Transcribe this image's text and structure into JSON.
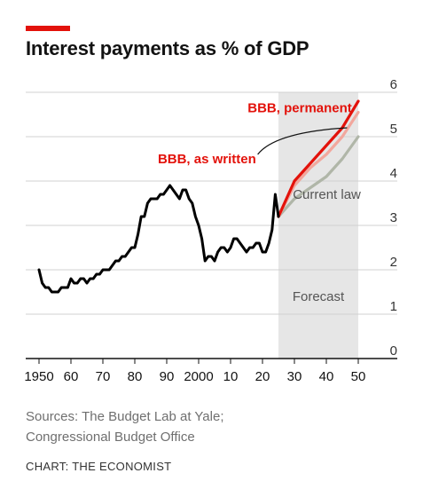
{
  "header": {
    "title": "Interest payments as % of GDP"
  },
  "footer": {
    "sources_line1": "Sources: The Budget Lab at Yale;",
    "sources_line2": "Congressional Budget Office",
    "credit": "CHART: THE ECONOMIST"
  },
  "colors": {
    "accent": "#e3120b",
    "permanent": "#e3120b",
    "as_written": "#f2a79d",
    "current_law": "#b0b6a8",
    "history": "#000000",
    "forecast_shade": "#e6e6e6"
  },
  "chart_data": {
    "type": "line",
    "title": "Interest payments as % of GDP",
    "xlim": [
      1947,
      2053
    ],
    "ylim": [
      0,
      6
    ],
    "x_ticks": [
      1950,
      1960,
      1970,
      1980,
      1990,
      2000,
      2010,
      2020,
      2030,
      2040,
      2050
    ],
    "x_tick_labels": [
      "1950",
      "60",
      "70",
      "80",
      "90",
      "2000",
      "10",
      "20",
      "30",
      "40",
      "50"
    ],
    "y_ticks": [
      0,
      1,
      2,
      3,
      4,
      5,
      6
    ],
    "y_tick_labels": [
      "0",
      "1",
      "2",
      "3",
      "4",
      "5",
      "6"
    ],
    "y_axis_side": "right",
    "grid": true,
    "forecast_region": {
      "x_start": 2025,
      "x_end": 2050,
      "label": "Forecast"
    },
    "history": {
      "x": [
        1950,
        1951,
        1952,
        1953,
        1954,
        1955,
        1956,
        1957,
        1958,
        1959,
        1960,
        1961,
        1962,
        1963,
        1964,
        1965,
        1966,
        1967,
        1968,
        1969,
        1970,
        1971,
        1972,
        1973,
        1974,
        1975,
        1976,
        1977,
        1978,
        1979,
        1980,
        1981,
        1982,
        1983,
        1984,
        1985,
        1986,
        1987,
        1988,
        1989,
        1990,
        1991,
        1992,
        1993,
        1994,
        1995,
        1996,
        1997,
        1998,
        1999,
        2000,
        2001,
        2002,
        2003,
        2004,
        2005,
        2006,
        2007,
        2008,
        2009,
        2010,
        2011,
        2012,
        2013,
        2014,
        2015,
        2016,
        2017,
        2018,
        2019,
        2020,
        2021,
        2022,
        2023,
        2024,
        2025
      ],
      "y": [
        2.0,
        1.7,
        1.6,
        1.6,
        1.5,
        1.5,
        1.5,
        1.6,
        1.6,
        1.6,
        1.8,
        1.7,
        1.7,
        1.8,
        1.8,
        1.7,
        1.8,
        1.8,
        1.9,
        1.9,
        2.0,
        2.0,
        2.0,
        2.1,
        2.2,
        2.2,
        2.3,
        2.3,
        2.4,
        2.5,
        2.5,
        2.8,
        3.2,
        3.2,
        3.5,
        3.6,
        3.6,
        3.6,
        3.7,
        3.7,
        3.8,
        3.9,
        3.8,
        3.7,
        3.6,
        3.8,
        3.8,
        3.6,
        3.5,
        3.2,
        3.0,
        2.7,
        2.2,
        2.3,
        2.3,
        2.2,
        2.4,
        2.5,
        2.5,
        2.4,
        2.5,
        2.7,
        2.7,
        2.6,
        2.5,
        2.4,
        2.5,
        2.5,
        2.6,
        2.6,
        2.4,
        2.4,
        2.6,
        2.9,
        3.7,
        3.2
      ]
    },
    "series": [
      {
        "name": "BBB, permanent",
        "x": [
          2025,
          2030,
          2035,
          2040,
          2045,
          2050
        ],
        "y": [
          3.2,
          4.0,
          4.4,
          4.8,
          5.2,
          5.8
        ]
      },
      {
        "name": "BBB, as written",
        "x": [
          2025,
          2030,
          2035,
          2040,
          2045,
          2050
        ],
        "y": [
          3.2,
          3.9,
          4.3,
          4.6,
          5.0,
          5.55
        ]
      },
      {
        "name": "Current law",
        "x": [
          2025,
          2030,
          2035,
          2040,
          2045,
          2050
        ],
        "y": [
          3.2,
          3.6,
          3.85,
          4.1,
          4.5,
          5.0
        ]
      }
    ],
    "annotations": [
      {
        "text": "BBB, permanent",
        "series": "BBB, permanent"
      },
      {
        "text": "BBB, as written",
        "series": "BBB, as written"
      },
      {
        "text": "Current law",
        "series": "Current law"
      },
      {
        "text": "Forecast"
      }
    ]
  }
}
